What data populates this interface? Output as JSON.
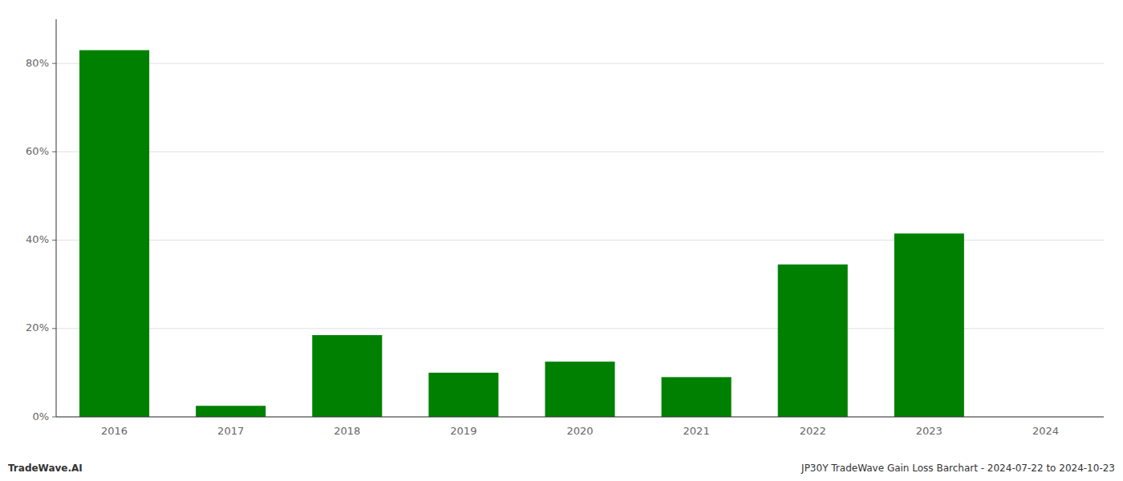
{
  "chart_data": {
    "type": "bar",
    "categories": [
      "2016",
      "2017",
      "2018",
      "2019",
      "2020",
      "2021",
      "2022",
      "2023",
      "2024"
    ],
    "values": [
      83.0,
      2.5,
      18.5,
      10.0,
      12.5,
      9.0,
      34.5,
      41.5,
      0.0
    ],
    "color": "#008000",
    "ylim": [
      0,
      90
    ],
    "yticks": [
      {
        "value": 0,
        "label": "0%"
      },
      {
        "value": 20,
        "label": "20%"
      },
      {
        "value": 40,
        "label": "40%"
      },
      {
        "value": 60,
        "label": "60%"
      },
      {
        "value": 80,
        "label": "80%"
      }
    ],
    "grid": true,
    "annotations": [
      "TradeWave.AI",
      "JP30Y TradeWave Gain Loss Barchart - 2024-07-22 to 2024-10-23"
    ]
  }
}
